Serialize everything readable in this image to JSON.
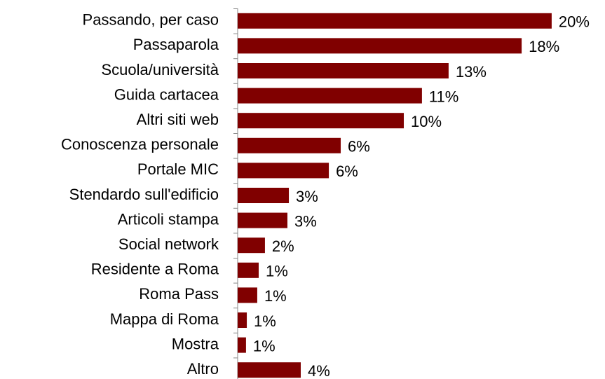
{
  "chart_data": {
    "type": "hbar",
    "categories": [
      "Passando, per caso",
      "Passaparola",
      "Scuola/università",
      "Guida cartacea",
      "Altri siti web",
      "Conoscenza personale",
      "Portale MIC",
      "Stendardo sull'edificio",
      "Articoli stampa",
      "Social network",
      "Residente a Roma",
      "Roma Pass",
      "Mappa di Roma",
      "Mostra",
      "Altro"
    ],
    "values": [
      19.56,
      17.69,
      13.14,
      11.48,
      10.35,
      6.42,
      5.68,
      3.19,
      3.1,
      1.7,
      1.31,
      1.22,
      0.57,
      0.52,
      3.93
    ],
    "value_labels": [
      "20%",
      "18%",
      "13%",
      "11%",
      "10%",
      "6%",
      "6%",
      "3%",
      "3%",
      "2%",
      "1%",
      "1%",
      "1%",
      "1%",
      "4%"
    ],
    "color": "#800000",
    "xlim": [
      0,
      20
    ]
  }
}
